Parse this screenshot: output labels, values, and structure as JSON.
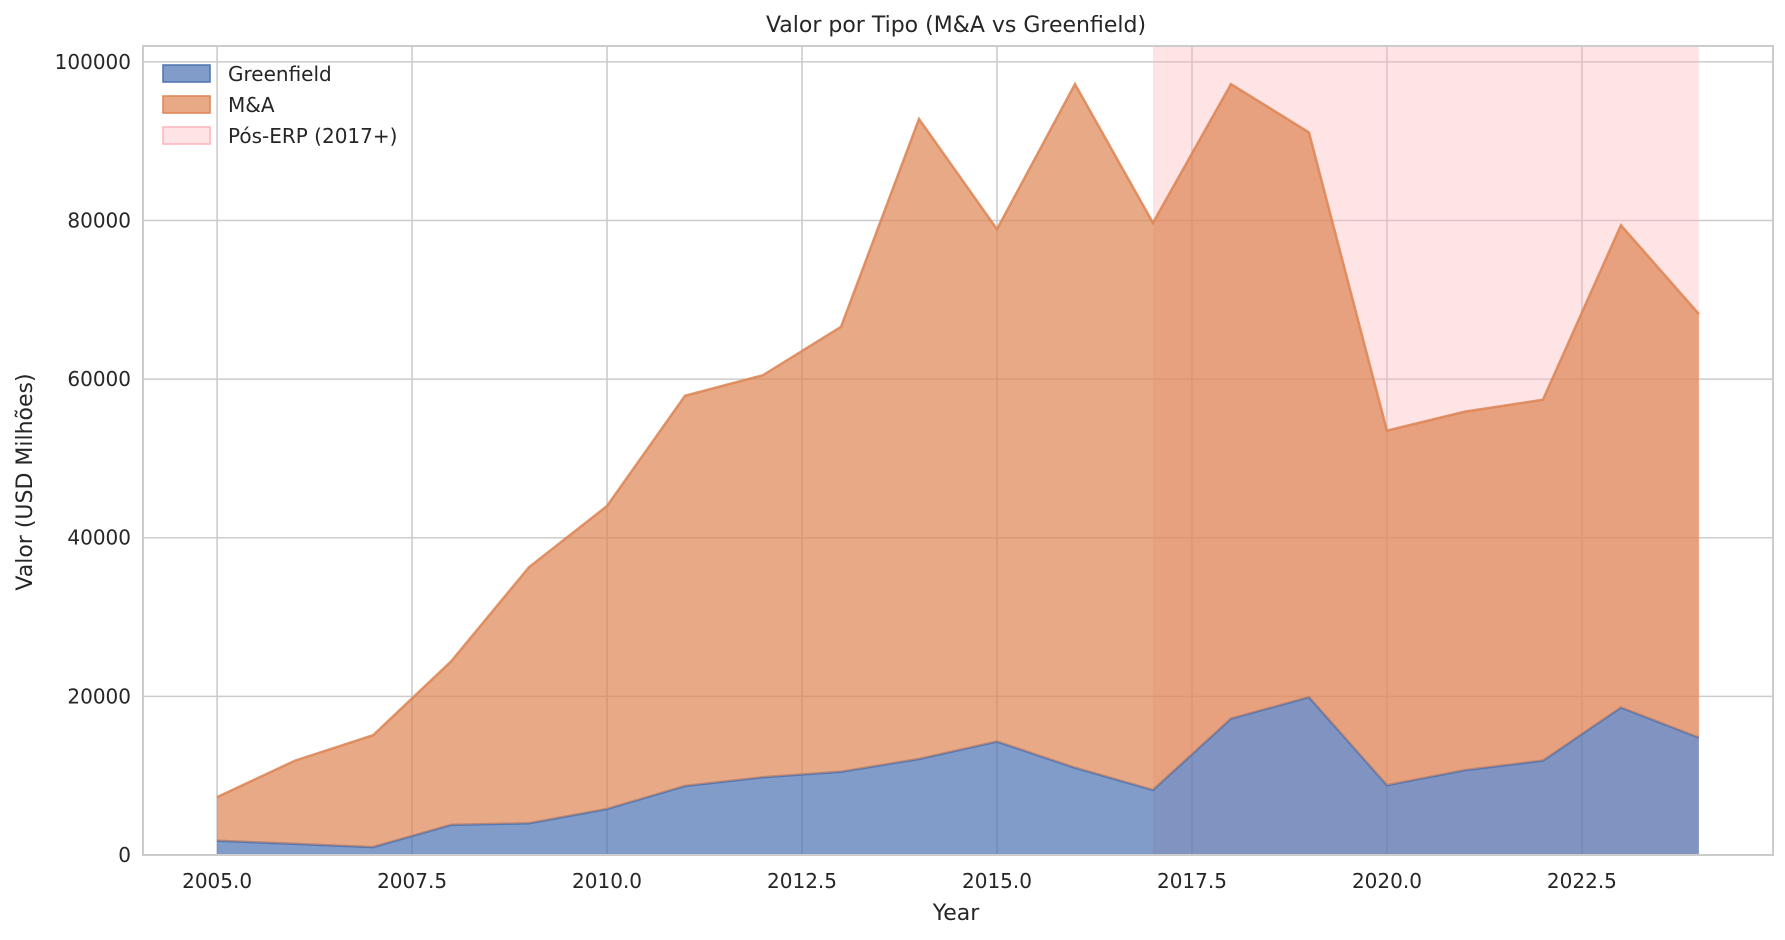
{
  "chart_data": {
    "type": "area",
    "stacked": true,
    "title": "Valor por Tipo (M&A vs Greenfield)",
    "xlabel": "Year",
    "ylabel": "Valor (USD Milhões)",
    "xlim": [
      2004.05,
      2024.95
    ],
    "ylim": [
      0,
      102000
    ],
    "grid": true,
    "legend_position": "top-left",
    "x": [
      2005,
      2006,
      2007,
      2008,
      2009,
      2010,
      2011,
      2012,
      2013,
      2014,
      2015,
      2016,
      2017,
      2018,
      2019,
      2020,
      2021,
      2022,
      2023,
      2024
    ],
    "x_ticks": [
      2005.0,
      2007.5,
      2010.0,
      2012.5,
      2015.0,
      2017.5,
      2020.0,
      2022.5
    ],
    "x_tick_labels": [
      "2005.0",
      "2007.5",
      "2010.0",
      "2012.5",
      "2015.0",
      "2017.5",
      "2020.0",
      "2022.5"
    ],
    "y_ticks": [
      0,
      20000,
      40000,
      60000,
      80000,
      100000
    ],
    "y_tick_labels": [
      "0",
      "20000",
      "40000",
      "60000",
      "80000",
      "100000"
    ],
    "series": [
      {
        "name": "Greenfield",
        "color": "#4c72b0",
        "values": [
          1800,
          1400,
          1000,
          3800,
          4000,
          5800,
          8700,
          9800,
          10500,
          12100,
          14300,
          11000,
          8200,
          17200,
          19900,
          8800,
          10700,
          11900,
          18600,
          14800
        ]
      },
      {
        "name": "M&A",
        "color": "#dd8452",
        "values": [
          5500,
          10500,
          14100,
          20600,
          32300,
          38200,
          49200,
          50700,
          56100,
          80700,
          64600,
          86200,
          71500,
          80000,
          71200,
          44700,
          45200,
          45500,
          60800,
          53400
        ]
      }
    ],
    "shaded_region": {
      "name": "Pós-ERP (2017+)",
      "x_start": 2017,
      "x_end": 2024,
      "color": "#ffb3b8"
    }
  }
}
